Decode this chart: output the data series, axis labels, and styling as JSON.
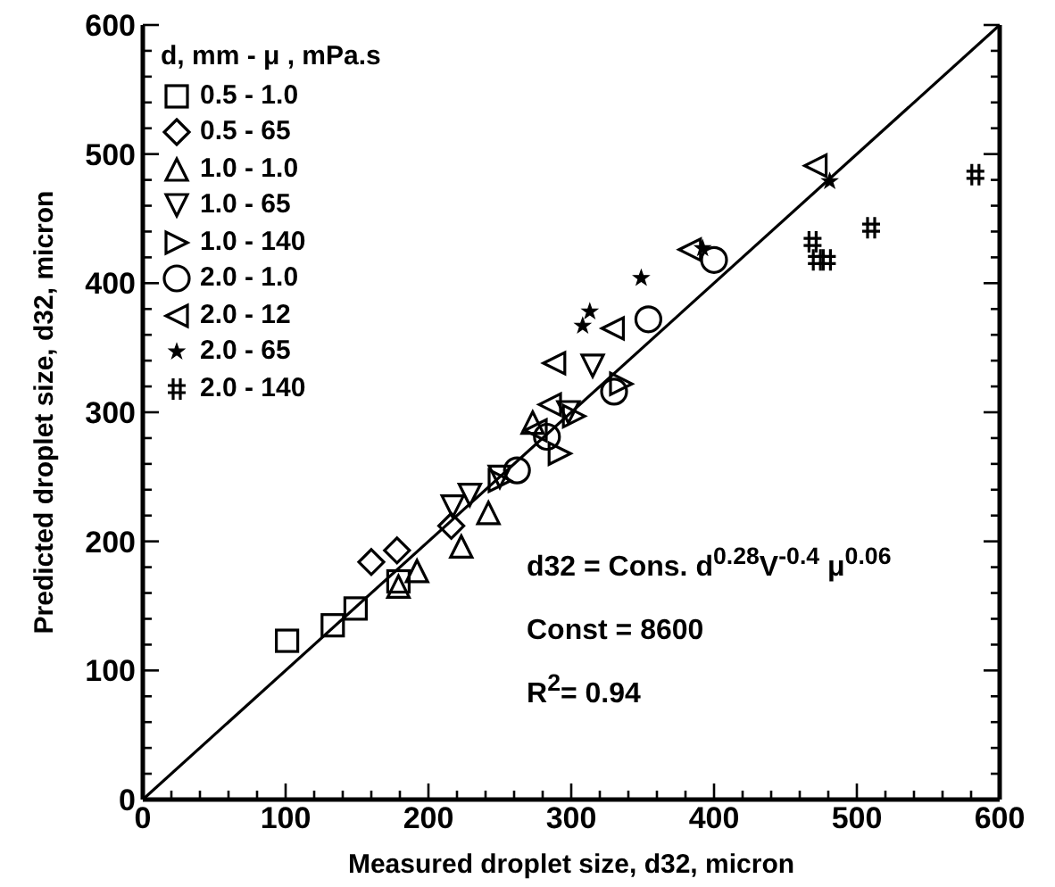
{
  "chart_data": {
    "type": "scatter",
    "xlabel": "Measured droplet size, d32, micron",
    "ylabel": "Predicted droplet size, d32, micron",
    "legend_title": "d, mm - μ , mPa.s",
    "legend": "top left",
    "grid": false,
    "xlim": [
      0,
      600
    ],
    "ylim": [
      0,
      600
    ],
    "xticks": [
      0,
      {
        "value": 20,
        "label": null
      },
      {
        "value": 40,
        "label": null
      },
      {
        "value": 60,
        "label": null
      },
      {
        "value": 80,
        "label": null
      },
      100,
      {
        "value": 120,
        "label": null
      },
      {
        "value": 140,
        "label": null
      },
      {
        "value": 160,
        "label": null
      },
      {
        "value": 180,
        "label": null
      },
      200,
      {
        "value": 220,
        "label": null
      },
      {
        "value": 240,
        "label": null
      },
      {
        "value": 260,
        "label": null
      },
      {
        "value": 280,
        "label": null
      },
      300,
      {
        "value": 320,
        "label": null
      },
      {
        "value": 340,
        "label": null
      },
      {
        "value": 360,
        "label": null
      },
      {
        "value": 380,
        "label": null
      },
      400,
      {
        "value": 420,
        "label": null
      },
      {
        "value": 440,
        "label": null
      },
      {
        "value": 460,
        "label": null
      },
      {
        "value": 480,
        "label": null
      },
      500,
      {
        "value": 520,
        "label": null
      },
      {
        "value": 540,
        "label": null
      },
      {
        "value": 560,
        "label": null
      },
      {
        "value": 580,
        "label": null
      },
      600
    ],
    "yticks": [
      0,
      {
        "value": 20,
        "label": null
      },
      {
        "value": 40,
        "label": null
      },
      {
        "value": 60,
        "label": null
      },
      {
        "value": 80,
        "label": null
      },
      100,
      {
        "value": 120,
        "label": null
      },
      {
        "value": 140,
        "label": null
      },
      {
        "value": 160,
        "label": null
      },
      {
        "value": 180,
        "label": null
      },
      200,
      {
        "value": 220,
        "label": null
      },
      {
        "value": 240,
        "label": null
      },
      {
        "value": 260,
        "label": null
      },
      {
        "value": 280,
        "label": null
      },
      300,
      {
        "value": 320,
        "label": null
      },
      {
        "value": 340,
        "label": null
      },
      {
        "value": 360,
        "label": null
      },
      {
        "value": 380,
        "label": null
      },
      400,
      {
        "value": 420,
        "label": null
      },
      {
        "value": 440,
        "label": null
      },
      {
        "value": 460,
        "label": null
      },
      {
        "value": 480,
        "label": null
      },
      500,
      {
        "value": 520,
        "label": null
      },
      {
        "value": 540,
        "label": null
      },
      {
        "value": 560,
        "label": null
      },
      {
        "value": 580,
        "label": null
      },
      600
    ],
    "annotations": [
      "d32 = Cons. d$^{0.28}$V$^{-0.4}$ μ$^{0.06}$",
      "Const = 8600",
      "R$^{2}$= 0.94"
    ],
    "series": [
      {
        "name": "0.5 - 1.0",
        "color": "#000000",
        "marker": "square",
        "x": [
          101,
          133,
          149,
          179
        ],
        "values": [
          123,
          135,
          148,
          169
        ]
      },
      {
        "name": "0.5 - 65",
        "color": "#000000",
        "marker": "diamond",
        "x": [
          160,
          178,
          216
        ],
        "values": [
          184,
          193,
          212
        ]
      },
      {
        "name": "1.0 - 1.0",
        "color": "#000000",
        "marker": "triangle",
        "x": [
          179,
          192,
          223,
          242,
          273
        ],
        "values": [
          165,
          177,
          196,
          222,
          292
        ]
      },
      {
        "name": "1.0 - 65",
        "color": "#000000",
        "marker": "triangle-down",
        "x": [
          217,
          229,
          250,
          298,
          315
        ],
        "values": [
          227,
          236,
          250,
          300,
          336
        ]
      },
      {
        "name": "1.0 - 140",
        "color": "#000000",
        "marker": "triangle-right",
        "x": [
          250,
          292,
          302,
          335
        ],
        "values": [
          247,
          268,
          297,
          322
        ]
      },
      {
        "name": "2.0 - 1.0",
        "color": "#000000",
        "marker": "circle",
        "x": [
          262,
          283,
          330,
          354,
          400
        ],
        "values": [
          255,
          281,
          316,
          372,
          418
        ]
      },
      {
        "name": "2.0 - 12",
        "color": "#000000",
        "marker": "triangle-left",
        "x": [
          275,
          285,
          288,
          329,
          383,
          471
        ],
        "values": [
          286,
          306,
          338,
          365,
          426,
          491
        ]
      },
      {
        "name": "2.0 - 65",
        "color": "#000000",
        "marker": "star",
        "x": [
          308,
          313,
          349,
          392,
          481
        ],
        "values": [
          367,
          378,
          404,
          427,
          479
        ]
      },
      {
        "name": "2.0 - 140",
        "color": "#000000",
        "marker": "cross",
        "x": [
          469,
          472,
          479,
          510,
          583
        ],
        "values": [
          432,
          418,
          418,
          443,
          484
        ]
      },
      {
        "type": "line",
        "color": "#000000",
        "x": [
          0,
          600
        ],
        "values": [
          0,
          600
        ]
      }
    ]
  }
}
